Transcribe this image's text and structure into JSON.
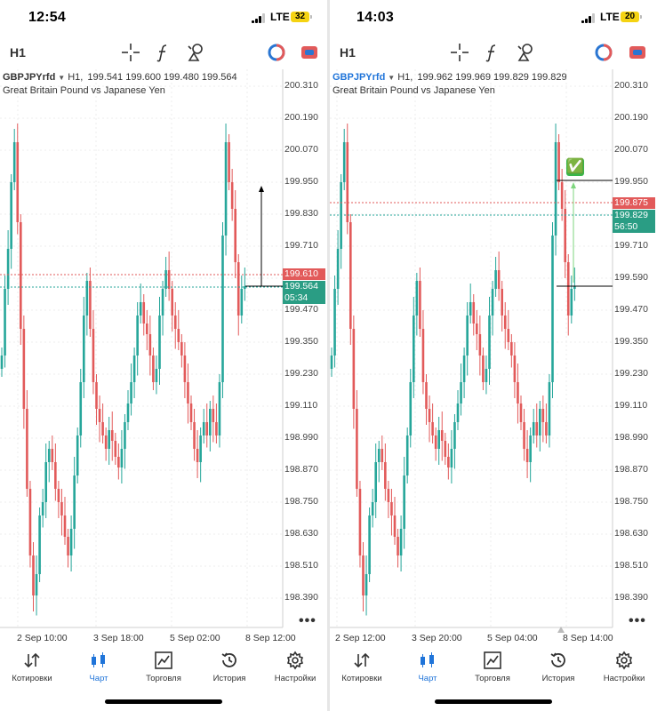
{
  "screens": [
    {
      "status": {
        "time": "12:54",
        "network": "LTE",
        "battery": "32"
      },
      "toolbar": {
        "timeframe": "H1"
      },
      "chart": {
        "symbol": "GBPJPYrfd",
        "timeframe": "H1,",
        "ohlc": "199.541 199.600 199.480 199.564",
        "description": "Great Britain Pound vs Japanese Yen",
        "price_labels": [
          "200.310",
          "200.190",
          "200.070",
          "199.950",
          "199.830",
          "199.710",
          "199.470",
          "199.350",
          "199.230",
          "199.110",
          "198.990",
          "198.870",
          "198.750",
          "198.630",
          "198.510",
          "198.390"
        ],
        "ask_price": "199.610",
        "bid_price": "199.564",
        "countdown": "05:34",
        "x_labels": [
          "2 Sep 10:00",
          "3 Sep 18:00",
          "5 Sep 02:00",
          "8 Sep 12:00"
        ]
      },
      "tabs": [
        "Котировки",
        "Чарт",
        "Торговля",
        "История",
        "Настройки"
      ]
    },
    {
      "status": {
        "time": "14:03",
        "network": "LTE",
        "battery": "20"
      },
      "toolbar": {
        "timeframe": "H1"
      },
      "chart": {
        "symbol": "GBPJPYrfd",
        "timeframe": "H1,",
        "ohlc": "199.962 199.969 199.829 199.829",
        "description": "Great Britain Pound vs Japanese Yen",
        "price_labels": [
          "200.310",
          "200.190",
          "200.070",
          "199.950",
          "199.710",
          "199.590",
          "199.470",
          "199.350",
          "199.230",
          "199.110",
          "198.990",
          "198.870",
          "198.750",
          "198.630",
          "198.510",
          "198.390"
        ],
        "ask_price": "199.875",
        "bid_price": "199.829",
        "countdown": "56:50",
        "x_labels": [
          "2 Sep 12:00",
          "3 Sep 20:00",
          "5 Sep 04:00",
          "8 Sep 14:00"
        ],
        "check_mark": "✅"
      },
      "tabs": [
        "Котировки",
        "Чарт",
        "Торговля",
        "История",
        "Настройки"
      ]
    }
  ],
  "colors": {
    "bull": "#26a69a",
    "bear": "#e25a5a",
    "accent": "#1f74d9"
  },
  "icons": [
    "crosshair-icon",
    "function-icon",
    "objects-icon",
    "trade-signals-icon",
    "account-icon",
    "quotes-icon",
    "chart-icon",
    "trade-icon",
    "history-icon",
    "settings-icon"
  ]
}
